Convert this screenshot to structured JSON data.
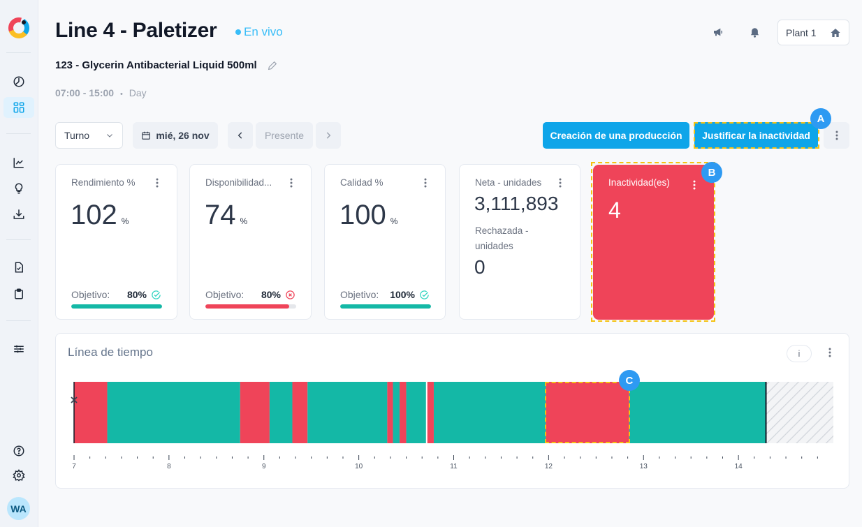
{
  "sidebar": {
    "top_items": [
      {
        "name": "dashboard-gauge",
        "label": "Dashboard"
      },
      {
        "name": "grid",
        "label": "Lines",
        "active": true
      }
    ],
    "mid_items": [
      {
        "name": "chart",
        "label": "Analytics"
      },
      {
        "name": "lightbulb",
        "label": "Insights"
      },
      {
        "name": "download",
        "label": "Export"
      }
    ],
    "doc_items": [
      {
        "name": "file-check",
        "label": "Reports"
      },
      {
        "name": "clipboard",
        "label": "Checklists"
      }
    ],
    "settings_items": [
      {
        "name": "sliders",
        "label": "Configuration"
      }
    ],
    "bottom_items": [
      {
        "name": "help",
        "label": "Help"
      },
      {
        "name": "gear",
        "label": "Settings"
      }
    ],
    "avatar_initials": "WA"
  },
  "header": {
    "title": "Line 4 - Paletizer",
    "live_label": "En vivo",
    "product": "123 - Glycerin Antibacterial Liquid 500ml",
    "shift_time": "07:00 - 15:00",
    "shift_separator": "•",
    "shift_name": "Day",
    "plant_label": "Plant 1"
  },
  "controls": {
    "period_select": "Turno",
    "date": "mié, 26 nov",
    "present_label": "Presente",
    "create_production": "Creación de una producción",
    "justify_inactivity": "Justificar la inactividad"
  },
  "annotations": {
    "a": "A",
    "b": "B",
    "c": "C"
  },
  "cards": {
    "rendimiento": {
      "label": "Rendimiento %",
      "value": "102",
      "unit": "%",
      "objective_label": "Objetivo:",
      "objective": "80%",
      "status": "ok",
      "progress": 1.0
    },
    "disponibilidad": {
      "label": "Disponibilidad...",
      "value": "74",
      "unit": "%",
      "objective_label": "Objetivo:",
      "objective": "80%",
      "status": "fail",
      "progress": 0.92
    },
    "calidad": {
      "label": "Calidad %",
      "value": "100",
      "unit": "%",
      "objective_label": "Objetivo:",
      "objective": "100%",
      "status": "ok",
      "progress": 1.0
    },
    "unidades": {
      "net_label": "Neta - unidades",
      "net_value": "3,111,893",
      "rejected_label_1": "Rechazada -",
      "rejected_label_2": "unidades",
      "rejected_value": "0"
    },
    "inactividad": {
      "label": "Inactividad(es)",
      "value": "4"
    }
  },
  "colors": {
    "running": "#14b8a6",
    "stopped": "#ef4459",
    "accent": "#0ea5e9",
    "ok": "#2dd4bf",
    "fail": "#ef4459"
  },
  "timeline": {
    "title": "Línea de tiempo",
    "info_label": "i",
    "chart_data": {
      "type": "timeline",
      "x_range": [
        7,
        15
      ],
      "ticks": [
        7,
        8,
        9,
        10,
        11,
        12,
        13,
        14
      ],
      "tick_labels": [
        "7",
        "8",
        "9",
        "10",
        "11",
        "12",
        "13",
        "14"
      ],
      "minor_ticks_per_hour": 6,
      "segments": [
        {
          "start": 7.0,
          "end": 7.35,
          "state": "stopped"
        },
        {
          "start": 7.35,
          "end": 8.75,
          "state": "running"
        },
        {
          "start": 8.75,
          "end": 9.06,
          "state": "stopped"
        },
        {
          "start": 9.06,
          "end": 9.3,
          "state": "running"
        },
        {
          "start": 9.3,
          "end": 9.46,
          "state": "stopped"
        },
        {
          "start": 9.46,
          "end": 10.3,
          "state": "running"
        },
        {
          "start": 10.3,
          "end": 10.36,
          "state": "stopped"
        },
        {
          "start": 10.36,
          "end": 10.43,
          "state": "running"
        },
        {
          "start": 10.43,
          "end": 10.5,
          "state": "stopped"
        },
        {
          "start": 10.5,
          "end": 10.71,
          "state": "running"
        },
        {
          "start": 10.72,
          "end": 10.79,
          "state": "stopped"
        },
        {
          "start": 10.79,
          "end": 11.97,
          "state": "running"
        },
        {
          "start": 11.97,
          "end": 12.85,
          "state": "stopped",
          "highlighted": true
        },
        {
          "start": 12.85,
          "end": 14.29,
          "state": "running"
        },
        {
          "start": 14.29,
          "end": 15.0,
          "state": "future"
        }
      ],
      "production_change_marker": 10.715,
      "now_marker": 14.29,
      "start_marker": 7.0
    }
  }
}
